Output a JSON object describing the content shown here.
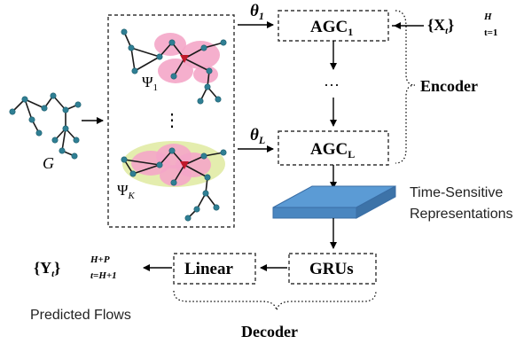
{
  "graph": {
    "input_label": "G",
    "subgraph1_label": "Ψ",
    "subgraph1_sub": "1",
    "subgraphK_label": "Ψ",
    "subgraphK_sub": "K",
    "vdots": "⋮"
  },
  "encoder": {
    "theta1": "θ",
    "theta1_sub": "1",
    "thetaL": "θ",
    "thetaL_sub": "L",
    "agc1": "AGC",
    "agc1_sub": "1",
    "agcL": "AGC",
    "agcL_sub": "L",
    "dots": "···",
    "input_set": "{X",
    "input_set_sub": "t",
    "input_set_close": "}",
    "input_set_sup": "H",
    "input_set_range": "t=1",
    "label": "Encoder"
  },
  "representation": {
    "line1": "Time-Sensitive",
    "line2": "Representations"
  },
  "decoder": {
    "grus": "GRUs",
    "linear": "Linear",
    "output_set": "{Y",
    "output_set_sub": "t",
    "output_set_close": "}",
    "output_set_sup": "H+P",
    "output_set_range": "t=H+1",
    "predicted": "Predicted Flows",
    "label": "Decoder"
  },
  "colors": {
    "highlight_pink": "#f4a6c8",
    "highlight_green": "#e3ecaa",
    "node": "#2f7f94",
    "center_node": "#c0182a",
    "plane": "#5b9bd5"
  }
}
